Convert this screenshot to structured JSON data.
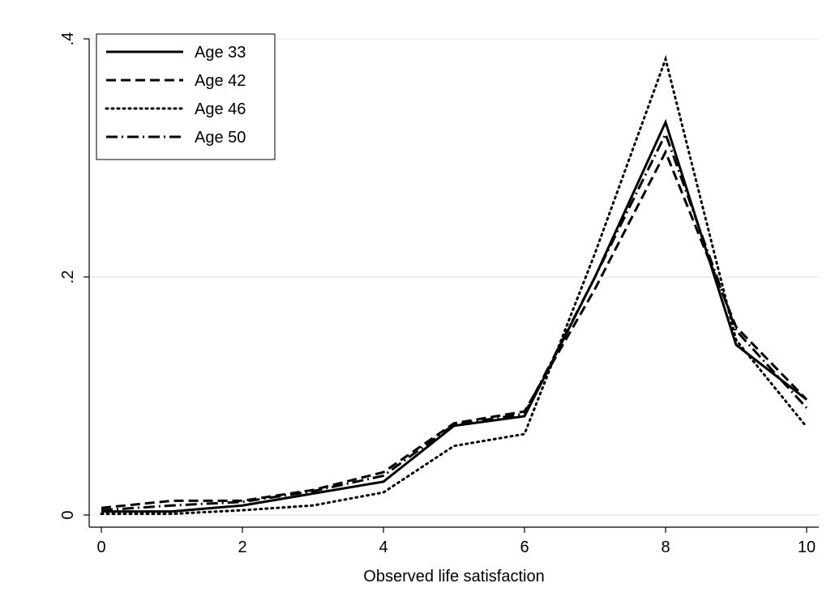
{
  "chart_data": {
    "type": "line",
    "title": "",
    "xlabel": "Observed life satisfaction",
    "ylabel": "",
    "xlim": [
      0,
      10
    ],
    "ylim": [
      0,
      0.4
    ],
    "xticks": [
      0,
      2,
      4,
      6,
      8,
      10
    ],
    "xtick_labels": [
      "0",
      "2",
      "4",
      "6",
      "8",
      "10"
    ],
    "yticks": [
      0,
      0.2,
      0.4
    ],
    "ytick_labels": [
      "0",
      ".2",
      ".4"
    ],
    "grid": "horizontal",
    "legend_position": "top-left",
    "x": [
      0,
      1,
      2,
      3,
      4,
      5,
      6,
      7,
      8,
      9,
      10
    ],
    "series": [
      {
        "name": "Age 33",
        "style": "solid",
        "color": "#000000",
        "values": [
          0.003,
          0.003,
          0.008,
          0.018,
          0.028,
          0.075,
          0.083,
          0.2,
          0.33,
          0.143,
          0.097
        ]
      },
      {
        "name": "Age 42",
        "style": "dashed",
        "color": "#000000",
        "values": [
          0.006,
          0.012,
          0.012,
          0.021,
          0.036,
          0.077,
          0.087,
          0.19,
          0.305,
          0.158,
          0.097
        ]
      },
      {
        "name": "Age 46",
        "style": "dotted",
        "color": "#000000",
        "values": [
          0.001,
          0.001,
          0.004,
          0.008,
          0.019,
          0.058,
          0.068,
          0.22,
          0.383,
          0.147,
          0.074
        ]
      },
      {
        "name": "Age 50",
        "style": "dashdot",
        "color": "#000000",
        "values": [
          0.004,
          0.008,
          0.011,
          0.02,
          0.033,
          0.076,
          0.085,
          0.2,
          0.32,
          0.155,
          0.09
        ]
      }
    ]
  }
}
